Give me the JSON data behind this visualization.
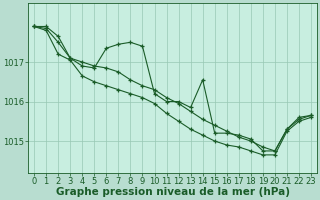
{
  "background_color": "#b8ddd0",
  "plot_bg_color": "#c8eee0",
  "grid_color": "#98c8b4",
  "line_color": "#1a5c28",
  "xlabel": "Graphe pression niveau de la mer (hPa)",
  "xlabel_fontsize": 7.5,
  "tick_fontsize": 6.0,
  "ylim": [
    1014.2,
    1018.5
  ],
  "xlim": [
    -0.5,
    23.5
  ],
  "yticks": [
    1015,
    1016,
    1017
  ],
  "xticks": [
    0,
    1,
    2,
    3,
    4,
    5,
    6,
    7,
    8,
    9,
    10,
    11,
    12,
    13,
    14,
    15,
    16,
    17,
    18,
    19,
    20,
    21,
    22,
    23
  ],
  "series": [
    {
      "x": [
        0,
        1,
        2,
        3,
        4,
        5,
        6,
        7,
        8,
        9,
        10,
        11,
        12,
        13,
        14,
        15,
        16,
        17,
        18,
        19,
        20,
        21,
        22,
        23
      ],
      "y": [
        1017.9,
        1017.9,
        1017.65,
        1017.1,
        1016.9,
        1016.85,
        1017.35,
        1017.45,
        1017.5,
        1017.4,
        1016.2,
        1016.0,
        1016.0,
        1015.85,
        1016.55,
        1015.2,
        1015.2,
        1015.15,
        1015.05,
        1014.75,
        1014.75,
        1015.3,
        1015.6,
        1015.65
      ]
    },
    {
      "x": [
        0,
        1,
        2,
        3,
        4,
        5,
        6,
        7,
        8,
        9,
        10,
        11,
        12,
        13,
        14,
        15,
        16,
        17,
        18,
        19,
        20,
        21,
        22,
        23
      ],
      "y": [
        1017.9,
        1017.85,
        1017.5,
        1017.1,
        1017.0,
        1016.9,
        1016.85,
        1016.75,
        1016.55,
        1016.4,
        1016.3,
        1016.1,
        1015.95,
        1015.75,
        1015.55,
        1015.4,
        1015.25,
        1015.1,
        1015.0,
        1014.85,
        1014.75,
        1015.3,
        1015.55,
        1015.65
      ]
    },
    {
      "x": [
        0,
        1,
        2,
        3,
        4,
        5,
        6,
        7,
        8,
        9,
        10,
        11,
        12,
        13,
        14,
        15,
        16,
        17,
        18,
        19,
        20,
        21,
        22,
        23
      ],
      "y": [
        1017.9,
        1017.8,
        1017.2,
        1017.05,
        1016.65,
        1016.5,
        1016.4,
        1016.3,
        1016.2,
        1016.1,
        1015.95,
        1015.7,
        1015.5,
        1015.3,
        1015.15,
        1015.0,
        1014.9,
        1014.85,
        1014.75,
        1014.65,
        1014.65,
        1015.25,
        1015.5,
        1015.6
      ]
    }
  ]
}
